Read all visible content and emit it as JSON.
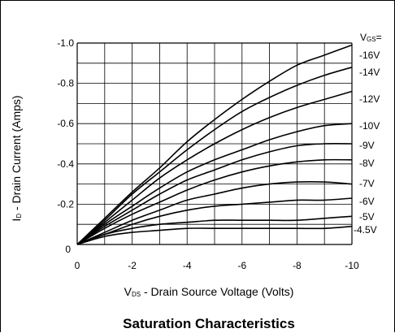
{
  "chart_data": {
    "type": "line",
    "title": "Saturation Characteristics",
    "xlabel": {
      "main": "V",
      "sub": "DS",
      "rest": " - Drain Source Voltage (Volts)"
    },
    "ylabel": {
      "main": "I",
      "sub": "D",
      "rest": " - Drain Current (Amps)"
    },
    "xlim": [
      0,
      -10
    ],
    "ylim": [
      0,
      -1.0
    ],
    "x_ticks": [
      "0",
      "-2",
      "-4",
      "-6",
      "-8",
      "-10"
    ],
    "y_ticks": [
      "0",
      "-0.2",
      "-0.4",
      "-0.6",
      "-0.8",
      "-1.0"
    ],
    "grid": true,
    "legend_header": {
      "main": "V",
      "sub": "GS",
      "rest": "="
    },
    "series": [
      {
        "name": "-16V",
        "x": [
          0,
          -1,
          -2,
          -3,
          -4,
          -5,
          -6,
          -7,
          -8,
          -9,
          -10
        ],
        "y": [
          0,
          -0.13,
          -0.26,
          -0.38,
          -0.51,
          -0.62,
          -0.72,
          -0.81,
          -0.89,
          -0.94,
          -0.99
        ]
      },
      {
        "name": "-14V",
        "x": [
          0,
          -1,
          -2,
          -3,
          -4,
          -5,
          -6,
          -7,
          -8,
          -9,
          -10
        ],
        "y": [
          0,
          -0.12,
          -0.25,
          -0.36,
          -0.47,
          -0.57,
          -0.66,
          -0.73,
          -0.79,
          -0.84,
          -0.88
        ]
      },
      {
        "name": "-12V",
        "x": [
          0,
          -1,
          -2,
          -3,
          -4,
          -5,
          -6,
          -7,
          -8,
          -9,
          -10
        ],
        "y": [
          0,
          -0.11,
          -0.22,
          -0.33,
          -0.42,
          -0.5,
          -0.57,
          -0.63,
          -0.68,
          -0.72,
          -0.76
        ]
      },
      {
        "name": "-10V",
        "x": [
          0,
          -1,
          -2,
          -3,
          -4,
          -5,
          -6,
          -7,
          -8,
          -9,
          -10
        ],
        "y": [
          0,
          -0.1,
          -0.19,
          -0.28,
          -0.36,
          -0.42,
          -0.47,
          -0.52,
          -0.56,
          -0.59,
          -0.6
        ]
      },
      {
        "name": "-9V",
        "x": [
          0,
          -1,
          -2,
          -3,
          -4,
          -5,
          -6,
          -7,
          -8,
          -9,
          -10
        ],
        "y": [
          0,
          -0.09,
          -0.17,
          -0.25,
          -0.32,
          -0.37,
          -0.42,
          -0.46,
          -0.49,
          -0.5,
          -0.5
        ]
      },
      {
        "name": "-8V",
        "x": [
          0,
          -1,
          -2,
          -3,
          -4,
          -5,
          -6,
          -7,
          -8,
          -9,
          -10
        ],
        "y": [
          0,
          -0.08,
          -0.15,
          -0.21,
          -0.27,
          -0.32,
          -0.36,
          -0.39,
          -0.41,
          -0.42,
          -0.42
        ]
      },
      {
        "name": "-7V",
        "x": [
          0,
          -1,
          -2,
          -3,
          -4,
          -5,
          -6,
          -7,
          -8,
          -9,
          -10
        ],
        "y": [
          0,
          -0.06,
          -0.12,
          -0.17,
          -0.22,
          -0.25,
          -0.28,
          -0.3,
          -0.31,
          -0.31,
          -0.3
        ]
      },
      {
        "name": "-6V",
        "x": [
          0,
          -1,
          -2,
          -3,
          -4,
          -5,
          -6,
          -7,
          -8,
          -9,
          -10
        ],
        "y": [
          0,
          -0.05,
          -0.1,
          -0.14,
          -0.17,
          -0.19,
          -0.2,
          -0.21,
          -0.22,
          -0.22,
          -0.23
        ]
      },
      {
        "name": "-5V",
        "x": [
          0,
          -1,
          -2,
          -3,
          -4,
          -5,
          -6,
          -7,
          -8,
          -9,
          -10
        ],
        "y": [
          0,
          -0.05,
          -0.08,
          -0.1,
          -0.11,
          -0.12,
          -0.12,
          -0.12,
          -0.12,
          -0.13,
          -0.14
        ]
      },
      {
        "name": "-4.5V",
        "x": [
          0,
          -1,
          -2,
          -3,
          -4,
          -5,
          -6,
          -7,
          -8,
          -9,
          -10
        ],
        "y": [
          0,
          -0.04,
          -0.06,
          -0.07,
          -0.08,
          -0.08,
          -0.08,
          -0.08,
          -0.08,
          -0.08,
          -0.09
        ]
      }
    ]
  }
}
